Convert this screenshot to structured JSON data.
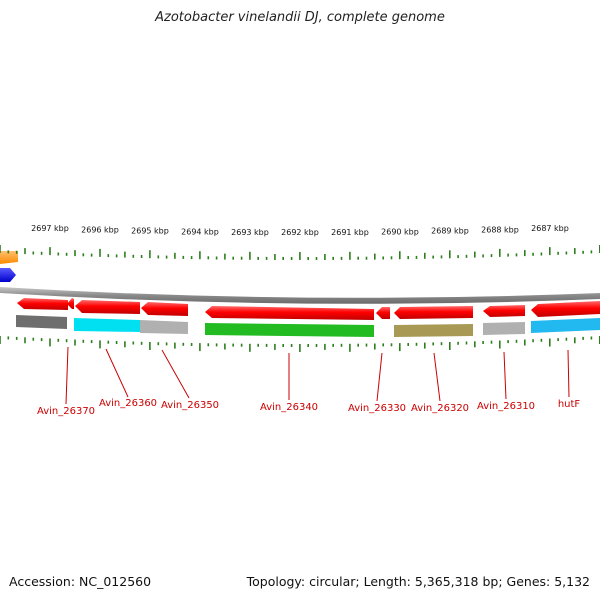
{
  "title": "Azotobacter vinelandii DJ, complete genome",
  "footer": {
    "accession": "Accession: NC_012560",
    "topology": "Topology: circular; Length: 5,365,318 bp; Genes: 5,132"
  },
  "scale": {
    "unit": "kbp",
    "labels": [
      "2697 kbp",
      "2696 kbp",
      "2695 kbp",
      "2694 kbp",
      "2693 kbp",
      "2692 kbp",
      "2691 kbp",
      "2690 kbp",
      "2689 kbp",
      "2688 kbp",
      "2687 kbp"
    ]
  },
  "colors": {
    "backbone": "#8a8a8a",
    "ticks": "#2e7d1e",
    "gene_label": "#cc0000",
    "cds_forward": "#ff0000",
    "cds_reverse": "#ff0000"
  },
  "genes": [
    {
      "label": "Avin_26370",
      "strand": "-",
      "cog_color": "#6e6e6e"
    },
    {
      "label": "Avin_26360",
      "strand": "-",
      "cog_color": "#00e0f0"
    },
    {
      "label": "Avin_26350",
      "strand": "-",
      "cog_color": "#b0b0b0"
    },
    {
      "label": "Avin_26340",
      "strand": "-",
      "cog_color": "#22bb22"
    },
    {
      "label": "Avin_26330",
      "strand": "-",
      "cog_color": "#ffffff"
    },
    {
      "label": "Avin_26320",
      "strand": "-",
      "cog_color": "#a89a55"
    },
    {
      "label": "Avin_26310",
      "strand": "-",
      "cog_color": "#b0b0b0"
    },
    {
      "label": "hutF",
      "strand": "-",
      "cog_color": "#22b8f0"
    }
  ]
}
